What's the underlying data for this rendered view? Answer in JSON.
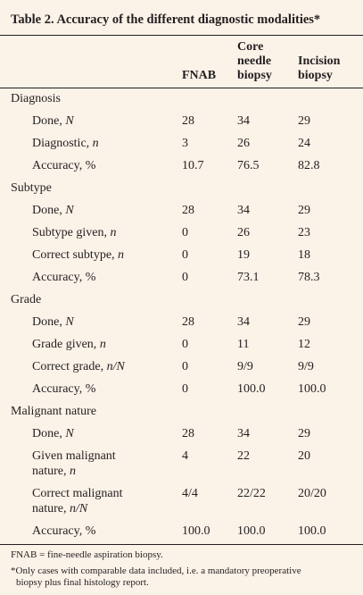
{
  "title": "Table 2. Accuracy of the different diagnostic modalities*",
  "columns": {
    "fnab": "FNAB",
    "core_l1": "Core",
    "core_l2": "needle",
    "core_l3": "biopsy",
    "inc_l1": "Incision",
    "inc_l2": "biopsy"
  },
  "rows": {
    "diagnosis": {
      "label": "Diagnosis",
      "done": {
        "label": "Done,",
        "unit": "N",
        "v": [
          "28",
          "34",
          "29"
        ]
      },
      "diagnostic": {
        "label": "Diagnostic,",
        "unit": "n",
        "v": [
          "3",
          "26",
          "24"
        ]
      },
      "accuracy": {
        "label": "Accuracy, %",
        "v": [
          "10.7",
          "76.5",
          "82.8"
        ]
      }
    },
    "subtype": {
      "label": "Subtype",
      "done": {
        "label": "Done,",
        "unit": "N",
        "v": [
          "28",
          "34",
          "29"
        ]
      },
      "given": {
        "label": "Subtype given,",
        "unit": "n",
        "v": [
          "0",
          "26",
          "23"
        ]
      },
      "correct": {
        "label": "Correct subtype,",
        "unit": "n",
        "v": [
          "0",
          "19",
          "18"
        ]
      },
      "accuracy": {
        "label": "Accuracy, %",
        "v": [
          "0",
          "73.1",
          "78.3"
        ]
      }
    },
    "grade": {
      "label": "Grade",
      "done": {
        "label": "Done,",
        "unit": "N",
        "v": [
          "28",
          "34",
          "29"
        ]
      },
      "given": {
        "label": "Grade given,",
        "unit": "n",
        "v": [
          "0",
          "11",
          "12"
        ]
      },
      "correct": {
        "label": "Correct grade,",
        "unit": "n/N",
        "v": [
          "0",
          "9/9",
          "9/9"
        ]
      },
      "accuracy": {
        "label": "Accuracy, %",
        "v": [
          "0",
          "100.0",
          "100.0"
        ]
      }
    },
    "malignant": {
      "label": "Malignant nature",
      "done": {
        "label": "Done,",
        "unit": "N",
        "v": [
          "28",
          "34",
          "29"
        ]
      },
      "given": {
        "label_l1": "Given malignant",
        "label_l2": "nature,",
        "unit": "n",
        "v": [
          "4",
          "22",
          "20"
        ]
      },
      "correct": {
        "label_l1": "Correct malignant",
        "label_l2": "nature,",
        "unit": "n/N",
        "v": [
          "4/4",
          "22/22",
          "20/20"
        ]
      },
      "accuracy": {
        "label": "Accuracy, %",
        "v": [
          "100.0",
          "100.0",
          "100.0"
        ]
      }
    }
  },
  "footnotes": {
    "f1": "FNAB = fine-needle aspiration biopsy.",
    "f2_l1": "*Only cases with comparable data included, i.e. a mandatory preoperative",
    "f2_l2": "biopsy plus final histology report."
  }
}
